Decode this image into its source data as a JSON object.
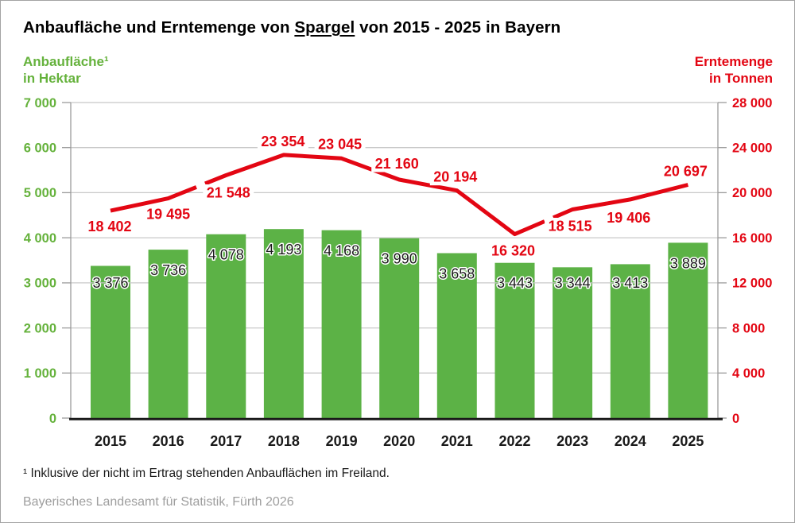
{
  "title": {
    "prefix": "Anbaufläche und Erntemenge von ",
    "highlight": "Spargel",
    "suffix": " von 2015 - 2025 in Bayern"
  },
  "left_axis": {
    "label_line1": "Anbaufläche¹",
    "label_line2": "in Hektar",
    "tick_labels": [
      "0",
      "1 000",
      "2 000",
      "3 000",
      "4 000",
      "5 000",
      "6 000",
      "7 000"
    ]
  },
  "right_axis": {
    "label_line1": "Erntemenge",
    "label_line2": "in Tonnen",
    "tick_labels": [
      "0",
      "4 000",
      "8 000",
      "12 000",
      "16 000",
      "20 000",
      "24 000",
      "28 000"
    ]
  },
  "footnote": "¹ Inklusive der nicht im Ertrag stehenden Anbauflächen im Freiland.",
  "source": "Bayerisches Landesamt für Statistik, Fürth 2026",
  "colors": {
    "bar_green": "#5cb246",
    "green_text": "#65b23c",
    "red": "#e30613",
    "grid": "#c8c8c8",
    "axis_line": "#9b9b9b",
    "black": "#1a1a1a"
  },
  "chart_data": {
    "type": "bar",
    "subtype": "bar+line combo, dual axis",
    "categories": [
      "2015",
      "2016",
      "2017",
      "2018",
      "2019",
      "2020",
      "2021",
      "2022",
      "2023",
      "2024",
      "2025"
    ],
    "series": [
      {
        "name": "Anbaufläche in Hektar",
        "type": "bar",
        "axis": "left",
        "values": [
          3376,
          3736,
          4078,
          4193,
          4168,
          3990,
          3658,
          3443,
          3344,
          3413,
          3889
        ],
        "labels": [
          "3 376",
          "3 736",
          "4 078",
          "4 193",
          "4 168",
          "3 990",
          "3 658",
          "3 443",
          "3 344",
          "3 413",
          "3 889"
        ]
      },
      {
        "name": "Erntemenge in Tonnen",
        "type": "line",
        "axis": "right",
        "values": [
          18402,
          19495,
          21548,
          23354,
          23045,
          21160,
          20194,
          16320,
          18515,
          19406,
          20697
        ],
        "labels": [
          "18 402",
          "19 495",
          "21 548",
          "23 354",
          "23 045",
          "21 160",
          "20 194",
          "16 320",
          "18 515",
          "19 406",
          "20 697"
        ]
      }
    ],
    "left_ylim": [
      0,
      7000
    ],
    "right_ylim": [
      0,
      28000
    ],
    "grid": true,
    "legend_position": "none",
    "title": "Anbaufläche und Erntemenge von Spargel von 2015 - 2025 in Bayern"
  }
}
